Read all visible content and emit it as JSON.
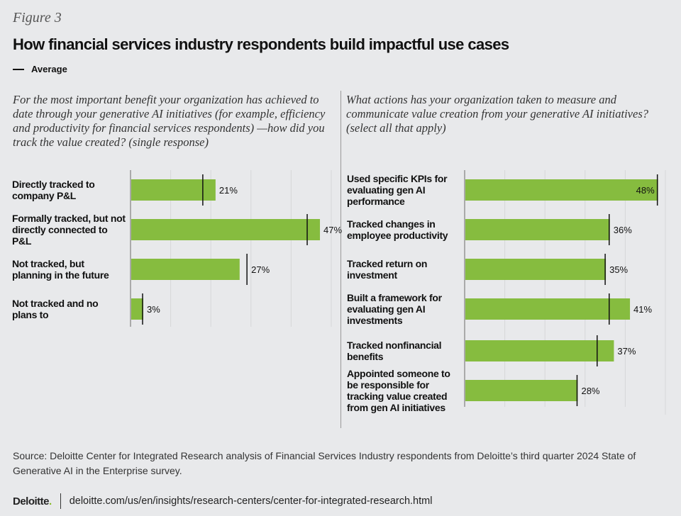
{
  "figure_label": "Figure 3",
  "title": "How financial services industry respondents build impactful use cases",
  "legend": "Average",
  "colors": {
    "bar": "#86bc3f",
    "average": "#111111",
    "grid": "#d6d7d9"
  },
  "chart_data": [
    {
      "type": "bar",
      "orientation": "horizontal",
      "question": "For the most important benefit your organization has achieved to date through your generative AI initiatives (for example, efficiency and productivity for financial services respondents) —how did you track the value created? (single response)",
      "categories": [
        "Directly tracked to company P&L",
        "Formally tracked, but not directly connected to P&L",
        "Not tracked, but planning in the future",
        "Not tracked and no plans to"
      ],
      "values": [
        21,
        47,
        27,
        3
      ],
      "data_labels": [
        "21%",
        "47%",
        "27%",
        "3%"
      ],
      "average": [
        18,
        44,
        29,
        3
      ],
      "xlim": [
        0,
        50
      ],
      "grid": true
    },
    {
      "type": "bar",
      "orientation": "horizontal",
      "question": "What actions has your organization taken to measure and communicate value creation from your generative AI initiatives? (select all that apply)",
      "categories": [
        "Used specific KPIs for evaluating gen AI performance",
        "Tracked changes in employee productivity",
        "Tracked return on investment",
        "Built a framework for evaluating gen AI investments",
        "Tracked nonfinancial benefits",
        "Appointed someone to be responsible for tracking value created from gen AI initiatives"
      ],
      "values": [
        48,
        36,
        35,
        41,
        37,
        28
      ],
      "data_labels": [
        "48%",
        "36%",
        "35%",
        "41%",
        "37%",
        "28%"
      ],
      "average": [
        48,
        36,
        35,
        36,
        33,
        28
      ],
      "xlim": [
        0,
        50
      ],
      "grid": true
    }
  ],
  "source": "Source: Deloitte Center for Integrated Research analysis of Financial Services Industry respondents from Deloitte’s third quarter 2024 State of Generative AI in the Enterprise survey.",
  "footer": {
    "logo": "Deloitte",
    "logo_dot": ".",
    "url": "deloitte.com/us/en/insights/research-centers/center-for-integrated-research.html"
  }
}
